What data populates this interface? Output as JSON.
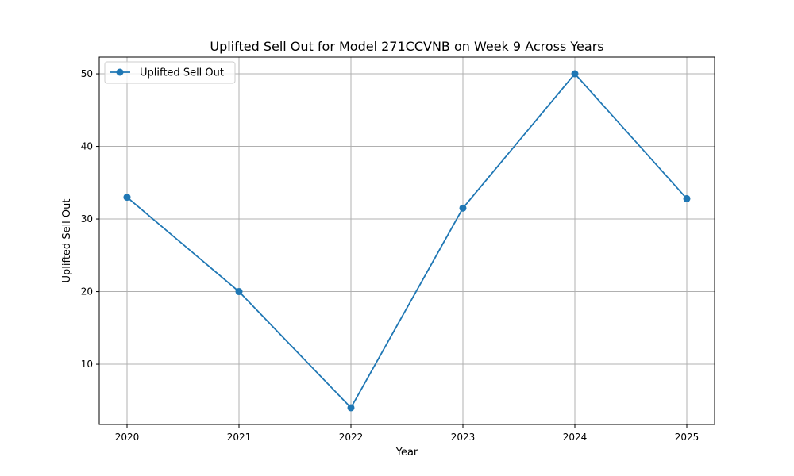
{
  "chart_data": {
    "type": "line",
    "title": "Uplifted Sell Out for Model 271CCVNB on Week 9 Across Years",
    "xlabel": "Year",
    "ylabel": "Uplifted Sell Out",
    "categories": [
      "2020",
      "2021",
      "2022",
      "2023",
      "2024",
      "2025"
    ],
    "series": [
      {
        "name": "Uplifted Sell Out",
        "values": [
          33,
          20,
          4,
          31.5,
          50,
          32.8
        ],
        "color": "#1f77b4"
      }
    ],
    "ylim": [
      1.7,
      52.3
    ],
    "yticks": [
      10,
      20,
      30,
      40,
      50
    ],
    "grid": true,
    "legend": "top-left"
  }
}
